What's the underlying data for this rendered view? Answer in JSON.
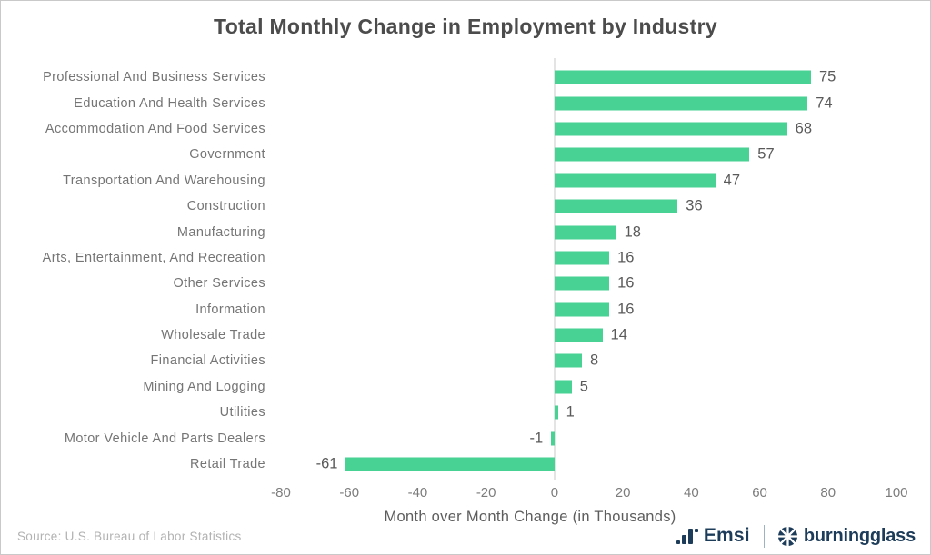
{
  "chart_data": {
    "type": "bar",
    "orientation": "horizontal",
    "title": "Total Monthly Change in Employment by Industry",
    "categories": [
      "Professional And Business Services",
      "Education And Health Services",
      "Accommodation And Food Services",
      "Government",
      "Transportation And Warehousing",
      "Construction",
      "Manufacturing",
      "Arts, Entertainment, And Recreation",
      "Other Services",
      "Information",
      "Wholesale Trade",
      "Financial Activities",
      "Mining And Logging",
      "Utilities",
      "Motor Vehicle And Parts Dealers",
      "Retail Trade"
    ],
    "values": [
      75,
      74,
      68,
      57,
      47,
      36,
      18,
      16,
      16,
      16,
      14,
      8,
      5,
      1,
      -1,
      -61
    ],
    "xlabel": "Month over Month Change (in Thousands)",
    "ylabel": "",
    "xlim": [
      -80,
      100
    ],
    "xticks": [
      -80,
      -60,
      -40,
      -20,
      0,
      20,
      40,
      60,
      80,
      100
    ],
    "value_labels_shown": true,
    "grid": "zero-line-only",
    "legend": "none",
    "bar_color": "#48d294",
    "zero_line_color": "#e4e4e4"
  },
  "footer": {
    "source": "Source:  U.S. Bureau of Labor Statistics",
    "emsi_label": "Emsi",
    "burningglass_label": "burningglass",
    "logo_color": "#1d3c59",
    "icons": {
      "emsi": "bar-chart-icon",
      "burningglass": "shutter-aperture-icon"
    }
  }
}
